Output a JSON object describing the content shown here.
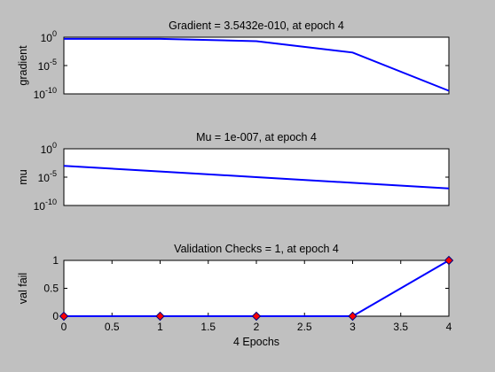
{
  "chart_data": [
    {
      "type": "line",
      "title": "Gradient = 3.5432e-010, at epoch 4",
      "xlabel": "",
      "ylabel": "gradient",
      "y_scale": "log",
      "y_ticks": [
        {
          "value": 1,
          "base": "10",
          "exp": "0"
        },
        {
          "value": 1e-05,
          "base": "10",
          "exp": "-5"
        },
        {
          "value": 1e-10,
          "base": "10",
          "exp": "-10"
        }
      ],
      "xlim": [
        0,
        4
      ],
      "ylim": [
        1e-10,
        1
      ],
      "grid": false,
      "line_color": "#0000ff",
      "series": [
        {
          "x": [
            0,
            1,
            2,
            3,
            4
          ],
          "y": [
            0.5,
            0.5,
            0.2,
            0.002,
            3.5432e-10
          ]
        }
      ]
    },
    {
      "type": "line",
      "title": "Mu = 1e-007, at epoch 4",
      "xlabel": "",
      "ylabel": "mu",
      "y_scale": "log",
      "y_ticks": [
        {
          "value": 1,
          "base": "10",
          "exp": "0"
        },
        {
          "value": 1e-05,
          "base": "10",
          "exp": "-5"
        },
        {
          "value": 1e-10,
          "base": "10",
          "exp": "-10"
        }
      ],
      "xlim": [
        0,
        4
      ],
      "ylim": [
        1e-10,
        1
      ],
      "grid": false,
      "line_color": "#0000ff",
      "series": [
        {
          "x": [
            0,
            1,
            2,
            3,
            4
          ],
          "y": [
            0.001,
            0.0001,
            1e-05,
            1e-06,
            1e-07
          ]
        }
      ]
    },
    {
      "type": "scatter",
      "title": "Validation Checks = 1, at epoch 4",
      "xlabel": "4 Epochs",
      "ylabel": "val fail",
      "x_ticks": [
        "0",
        "0.5",
        "1",
        "1.5",
        "2",
        "2.5",
        "3",
        "3.5",
        "4"
      ],
      "y_ticks": [
        "0",
        "0.5",
        "1"
      ],
      "xlim": [
        0,
        4
      ],
      "ylim": [
        0,
        1
      ],
      "grid": false,
      "line_color": "#0000ff",
      "marker_fill": "#ff0000",
      "marker_edge": "#000080",
      "series": [
        {
          "x": [
            0,
            1,
            2,
            3,
            4
          ],
          "y": [
            0,
            0,
            0,
            0,
            1
          ]
        }
      ]
    }
  ]
}
